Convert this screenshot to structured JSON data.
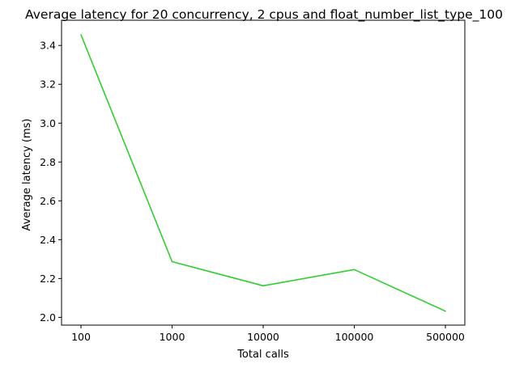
{
  "chart_data": {
    "type": "line",
    "title": "Average latency for 20 concurrency, 2 cpus and float_number_list_type_100",
    "xlabel": "Total calls",
    "ylabel": "Average latency (ms)",
    "categories": [
      "100",
      "1000",
      "10000",
      "100000",
      "500000"
    ],
    "series": [
      {
        "color": "#32cd32",
        "values": [
          3.455,
          2.287,
          2.163,
          2.246,
          2.032
        ]
      }
    ],
    "ylim": [
      1.96,
      3.53
    ],
    "yticks": [
      "2.0",
      "2.2",
      "2.4",
      "2.6",
      "2.8",
      "3.0",
      "3.2",
      "3.4"
    ],
    "grid": false,
    "legend": "none"
  }
}
